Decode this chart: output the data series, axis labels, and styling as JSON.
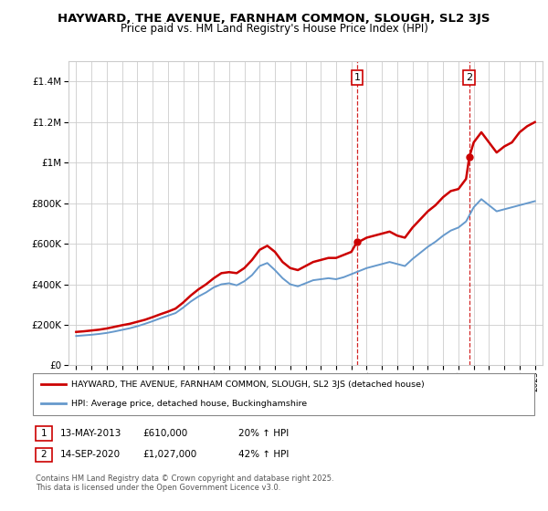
{
  "title": "HAYWARD, THE AVENUE, FARNHAM COMMON, SLOUGH, SL2 3JS",
  "subtitle": "Price paid vs. HM Land Registry's House Price Index (HPI)",
  "legend_house": "HAYWARD, THE AVENUE, FARNHAM COMMON, SLOUGH, SL2 3JS (detached house)",
  "legend_hpi": "HPI: Average price, detached house, Buckinghamshire",
  "annotation1_label": "1",
  "annotation1_date": "13-MAY-2013",
  "annotation1_price": "£610,000",
  "annotation1_pct": "20% ↑ HPI",
  "annotation1_year": 2013.37,
  "annotation1_value": 610000,
  "annotation2_label": "2",
  "annotation2_date": "14-SEP-2020",
  "annotation2_price": "£1,027,000",
  "annotation2_pct": "42% ↑ HPI",
  "annotation2_year": 2020.71,
  "annotation2_value": 1027000,
  "house_color": "#cc0000",
  "hpi_color": "#6699cc",
  "vline_color": "#cc0000",
  "ylim": [
    0,
    1500000
  ],
  "yticks": [
    0,
    200000,
    400000,
    600000,
    800000,
    1000000,
    1200000,
    1400000
  ],
  "footer": "Contains HM Land Registry data © Crown copyright and database right 2025.\nThis data is licensed under the Open Government Licence v3.0.",
  "house_years": [
    1995,
    1995.5,
    1996,
    1996.5,
    1997,
    1997.5,
    1998,
    1998.5,
    1999,
    1999.5,
    2000,
    2000.5,
    2001,
    2001.5,
    2002,
    2002.5,
    2003,
    2003.5,
    2004,
    2004.5,
    2005,
    2005.5,
    2006,
    2006.5,
    2007,
    2007.5,
    2008,
    2008.5,
    2009,
    2009.5,
    2010,
    2010.5,
    2011,
    2011.5,
    2012,
    2012.5,
    2013,
    2013.37,
    2013.5,
    2014,
    2014.5,
    2015,
    2015.5,
    2016,
    2016.5,
    2017,
    2017.5,
    2018,
    2018.5,
    2019,
    2019.5,
    2020,
    2020.5,
    2020.71,
    2021,
    2021.5,
    2022,
    2022.5,
    2023,
    2023.5,
    2024,
    2024.5,
    2025
  ],
  "house_values": [
    165000,
    168000,
    172000,
    176000,
    182000,
    190000,
    198000,
    205000,
    215000,
    225000,
    238000,
    252000,
    265000,
    280000,
    310000,
    345000,
    375000,
    400000,
    430000,
    455000,
    460000,
    455000,
    480000,
    520000,
    570000,
    590000,
    560000,
    510000,
    480000,
    470000,
    490000,
    510000,
    520000,
    530000,
    530000,
    545000,
    560000,
    610000,
    610000,
    630000,
    640000,
    650000,
    660000,
    640000,
    630000,
    680000,
    720000,
    760000,
    790000,
    830000,
    860000,
    870000,
    920000,
    1027000,
    1100000,
    1150000,
    1100000,
    1050000,
    1080000,
    1100000,
    1150000,
    1180000,
    1200000
  ],
  "hpi_years": [
    1995,
    1995.5,
    1996,
    1996.5,
    1997,
    1997.5,
    1998,
    1998.5,
    1999,
    1999.5,
    2000,
    2000.5,
    2001,
    2001.5,
    2002,
    2002.5,
    2003,
    2003.5,
    2004,
    2004.5,
    2005,
    2005.5,
    2006,
    2006.5,
    2007,
    2007.5,
    2008,
    2008.5,
    2009,
    2009.5,
    2010,
    2010.5,
    2011,
    2011.5,
    2012,
    2012.5,
    2013,
    2013.5,
    2014,
    2014.5,
    2015,
    2015.5,
    2016,
    2016.5,
    2017,
    2017.5,
    2018,
    2018.5,
    2019,
    2019.5,
    2020,
    2020.5,
    2021,
    2021.5,
    2022,
    2022.5,
    2023,
    2023.5,
    2024,
    2024.5,
    2025
  ],
  "hpi_values": [
    145000,
    148000,
    151000,
    155000,
    160000,
    167000,
    175000,
    183000,
    193000,
    205000,
    218000,
    232000,
    245000,
    258000,
    285000,
    315000,
    340000,
    360000,
    385000,
    400000,
    405000,
    395000,
    415000,
    445000,
    490000,
    505000,
    470000,
    430000,
    400000,
    390000,
    405000,
    420000,
    425000,
    430000,
    425000,
    435000,
    450000,
    465000,
    480000,
    490000,
    500000,
    510000,
    500000,
    490000,
    525000,
    555000,
    585000,
    610000,
    640000,
    665000,
    680000,
    710000,
    780000,
    820000,
    790000,
    760000,
    770000,
    780000,
    790000,
    800000,
    810000
  ],
  "xtick_years": [
    1995,
    1996,
    1997,
    1998,
    1999,
    2000,
    2001,
    2002,
    2003,
    2004,
    2005,
    2006,
    2007,
    2008,
    2009,
    2010,
    2011,
    2012,
    2013,
    2014,
    2015,
    2016,
    2017,
    2018,
    2019,
    2020,
    2021,
    2022,
    2023,
    2024,
    2025
  ]
}
